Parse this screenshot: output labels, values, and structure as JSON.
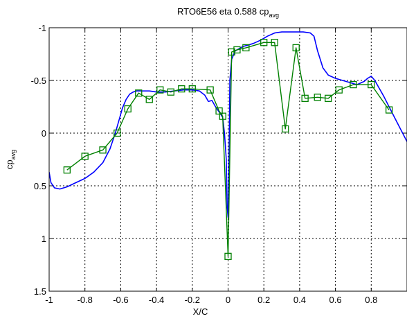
{
  "chart_data": {
    "type": "line",
    "title": "RTO6E56 eta 0.588 cp",
    "title_sub": "avg",
    "xlabel": "X/C",
    "ylabel": "cp",
    "ylabel_sub": "avg",
    "xlim": [
      -1,
      1
    ],
    "ylim": [
      1.5,
      -1
    ],
    "y_reversed": true,
    "grid": true,
    "x_ticks": [
      -1,
      -0.8,
      -0.6,
      -0.4,
      -0.2,
      0,
      0.2,
      0.4,
      0.6,
      0.8
    ],
    "x_tick_labels": [
      "-1",
      "-0.8",
      "-0.6",
      "-0.4",
      "-0.2",
      "0",
      "0.2",
      "0.4",
      "0.6",
      "0.8"
    ],
    "y_ticks": [
      -1,
      -0.5,
      0,
      0.5,
      1,
      1.5
    ],
    "y_tick_labels": [
      "-1",
      "-0.5",
      "0",
      "0.5",
      "1",
      "1.5"
    ],
    "series": [
      {
        "color": "#0000ff",
        "marker": "none",
        "x": [
          -1.0,
          -0.99,
          -0.97,
          -0.94,
          -0.9,
          -0.85,
          -0.8,
          -0.75,
          -0.7,
          -0.66,
          -0.63,
          -0.61,
          -0.59,
          -0.57,
          -0.55,
          -0.53,
          -0.51,
          -0.48,
          -0.44,
          -0.4,
          -0.35,
          -0.3,
          -0.25,
          -0.2,
          -0.16,
          -0.13,
          -0.11,
          -0.09,
          -0.07,
          -0.05,
          -0.03,
          -0.02,
          -0.01,
          -0.005,
          0.0,
          0.005,
          0.01,
          0.02,
          0.04,
          0.06,
          0.08,
          0.1,
          0.14,
          0.18,
          0.22,
          0.26,
          0.3,
          0.34,
          0.38,
          0.42,
          0.46,
          0.48,
          0.5,
          0.53,
          0.56,
          0.6,
          0.64,
          0.68,
          0.72,
          0.76,
          0.78,
          0.8,
          0.82,
          0.84,
          0.87,
          0.9,
          0.93,
          0.96,
          1.0
        ],
        "y": [
          0.37,
          0.47,
          0.52,
          0.53,
          0.51,
          0.47,
          0.43,
          0.37,
          0.28,
          0.15,
          0.0,
          -0.12,
          -0.24,
          -0.32,
          -0.37,
          -0.39,
          -0.4,
          -0.4,
          -0.4,
          -0.39,
          -0.39,
          -0.4,
          -0.41,
          -0.41,
          -0.4,
          -0.36,
          -0.3,
          -0.31,
          -0.25,
          -0.2,
          -0.15,
          0.0,
          0.25,
          0.7,
          0.8,
          0.3,
          -0.5,
          -0.7,
          -0.78,
          -0.8,
          -0.82,
          -0.83,
          -0.85,
          -0.88,
          -0.92,
          -0.95,
          -0.96,
          -0.96,
          -0.96,
          -0.96,
          -0.95,
          -0.92,
          -0.78,
          -0.62,
          -0.55,
          -0.52,
          -0.5,
          -0.48,
          -0.46,
          -0.49,
          -0.52,
          -0.54,
          -0.5,
          -0.44,
          -0.35,
          -0.25,
          -0.15,
          -0.05,
          0.08
        ]
      },
      {
        "color": "#008000",
        "marker": "square",
        "x": [
          -0.9,
          -0.8,
          -0.7,
          -0.62,
          -0.56,
          -0.5,
          -0.44,
          -0.38,
          -0.32,
          -0.26,
          -0.2,
          -0.1,
          -0.05,
          -0.03,
          0.0,
          0.02,
          0.05,
          0.1,
          0.2,
          0.26,
          0.32,
          0.38,
          0.43,
          0.5,
          0.56,
          0.62,
          0.7,
          0.8,
          0.9
        ],
        "y": [
          0.35,
          0.22,
          0.16,
          0.0,
          -0.23,
          -0.38,
          -0.32,
          -0.41,
          -0.39,
          -0.42,
          -0.42,
          -0.41,
          -0.21,
          -0.16,
          1.17,
          -0.77,
          -0.79,
          -0.81,
          -0.86,
          -0.86,
          -0.04,
          -0.81,
          -0.33,
          -0.34,
          -0.33,
          -0.41,
          -0.46,
          -0.46,
          -0.22
        ]
      }
    ]
  }
}
